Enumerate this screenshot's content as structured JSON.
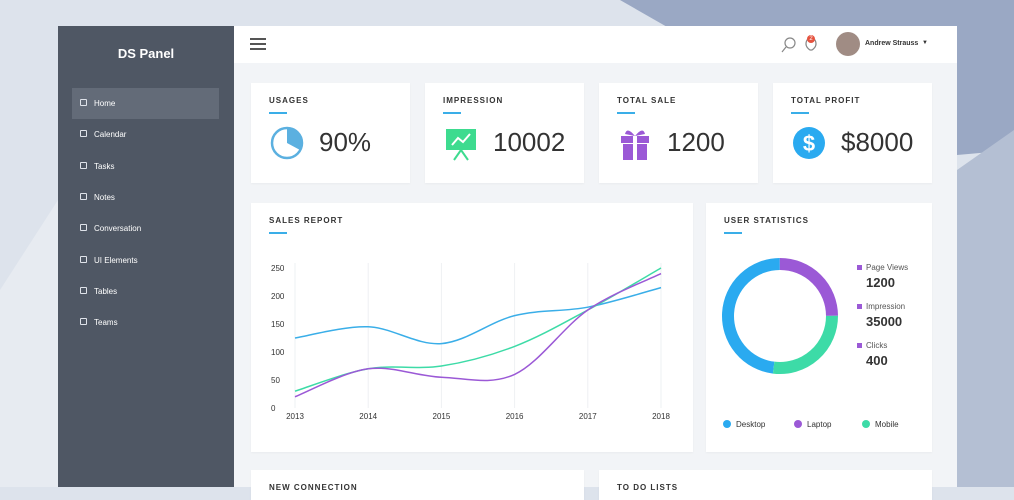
{
  "sidebar": {
    "title": "DS Panel",
    "menu": [
      "Home",
      "Calendar",
      "Tasks",
      "Notes",
      "Conversation",
      "UI Elements",
      "Tables",
      "Teams"
    ]
  },
  "topbar": {
    "user": "Andrew Strauss",
    "notifications": "2"
  },
  "stats": [
    {
      "label": "USAGES",
      "value": "90%"
    },
    {
      "label": "IMPRESSION",
      "value": "10002"
    },
    {
      "label": "TOTAL SALE",
      "value": "1200"
    },
    {
      "label": "TOTAL PROFIT",
      "value": "$8000"
    }
  ],
  "chart_data": [
    {
      "type": "line",
      "title": "SALES REPORT",
      "categories": [
        "2013",
        "2014",
        "2015",
        "2016",
        "2017",
        "2018"
      ],
      "series": [
        {
          "color": "#3aaee8",
          "values": [
            125,
            145,
            115,
            165,
            180,
            215
          ]
        },
        {
          "color": "#3ddba7",
          "values": [
            30,
            70,
            75,
            110,
            175,
            250
          ]
        },
        {
          "color": "#9b59d6",
          "values": [
            20,
            70,
            55,
            60,
            175,
            240
          ]
        }
      ],
      "ylim": [
        0,
        250
      ],
      "yticks": [
        0,
        50,
        100,
        150,
        200,
        250
      ],
      "grid": true
    },
    {
      "type": "donut",
      "title": "USER STATISTICS",
      "categories": [
        "Desktop",
        "Laptop",
        "Mobile"
      ],
      "values": [
        48,
        25,
        27
      ],
      "colors": [
        "#2aaaf0",
        "#9b59d6",
        "#3ddba7"
      ],
      "stats": [
        {
          "label": "Page Views",
          "value": 1200
        },
        {
          "label": "Impression",
          "value": 35000
        },
        {
          "label": "Clicks",
          "value": 400
        }
      ]
    }
  ],
  "panels": [
    "NEW CONNECTION",
    "TO DO LISTS"
  ]
}
